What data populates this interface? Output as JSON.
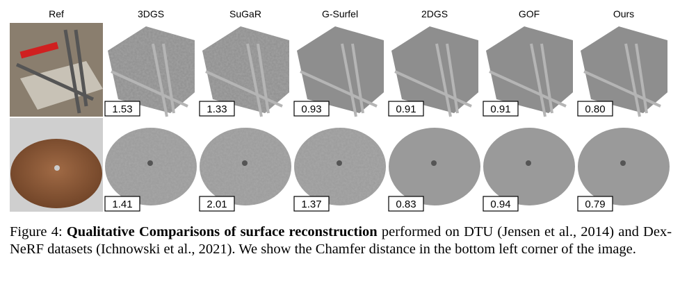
{
  "figure": {
    "columns": [
      "Ref",
      "3DGS",
      "SuGaR",
      "G-Surfel",
      "2DGS",
      "GOF",
      "Ours"
    ],
    "rows": [
      {
        "values": [
          "1.53",
          "1.33",
          "0.93",
          "0.91",
          "0.91",
          "0.80"
        ]
      },
      {
        "values": [
          "1.41",
          "2.01",
          "1.37",
          "0.83",
          "0.94",
          "0.79"
        ]
      }
    ],
    "caption": {
      "label": "Figure 4:",
      "bold": "Qualitative Comparisons of surface reconstruction",
      "rest": "performed on DTU (Jensen et al., 2014) and Dex-NeRF datasets (Ichnowski et al., 2021). We show the Chamfer distance in the bottom left corner of the image."
    }
  }
}
